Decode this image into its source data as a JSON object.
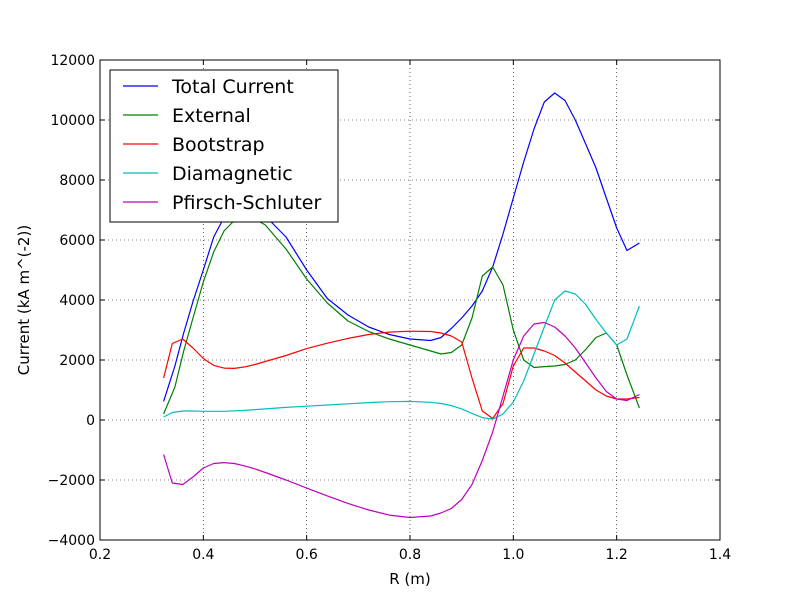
{
  "chart_data": {
    "type": "line",
    "xlabel": "R (m)",
    "ylabel": "Current (kA m^(-2))",
    "xlim": [
      0.2,
      1.4
    ],
    "ylim": [
      -4000,
      12000
    ],
    "xticks": [
      "0.2",
      "0.4",
      "0.6",
      "0.8",
      "1.0",
      "1.2",
      "1.4"
    ],
    "yticks": [
      "−4000",
      "−2000",
      "0",
      "2000",
      "4000",
      "6000",
      "8000",
      "10000",
      "12000"
    ],
    "xtick_values": [
      0.2,
      0.4,
      0.6,
      0.8,
      1.0,
      1.2,
      1.4
    ],
    "ytick_values": [
      -4000,
      -2000,
      0,
      2000,
      4000,
      6000,
      8000,
      10000,
      12000
    ],
    "grid": true,
    "legend_position": "top-left",
    "series": [
      {
        "name": "Total Current",
        "color": "#0000ff",
        "x": [
          0.323,
          0.345,
          0.362,
          0.38,
          0.4,
          0.42,
          0.44,
          0.46,
          0.48,
          0.5,
          0.52,
          0.56,
          0.6,
          0.64,
          0.68,
          0.72,
          0.76,
          0.8,
          0.84,
          0.86,
          0.88,
          0.9,
          0.92,
          0.94,
          0.96,
          0.98,
          1.0,
          1.02,
          1.04,
          1.06,
          1.08,
          1.1,
          1.12,
          1.14,
          1.16,
          1.18,
          1.2,
          1.22,
          1.244
        ],
        "y": [
          620,
          1800,
          2900,
          3950,
          5000,
          6100,
          6750,
          7050,
          7050,
          6950,
          6800,
          6100,
          5000,
          4050,
          3500,
          3100,
          2850,
          2700,
          2650,
          2750,
          3050,
          3400,
          3800,
          4300,
          5100,
          6200,
          7400,
          8600,
          9700,
          10600,
          10900,
          10650,
          10000,
          9200,
          8400,
          7400,
          6400,
          5650,
          5900
        ]
      },
      {
        "name": "External",
        "color": "#008000",
        "x": [
          0.323,
          0.345,
          0.362,
          0.38,
          0.4,
          0.42,
          0.44,
          0.46,
          0.48,
          0.5,
          0.52,
          0.56,
          0.6,
          0.64,
          0.68,
          0.72,
          0.76,
          0.8,
          0.84,
          0.86,
          0.88,
          0.9,
          0.92,
          0.94,
          0.96,
          0.98,
          1.0,
          1.02,
          1.04,
          1.06,
          1.08,
          1.1,
          1.12,
          1.14,
          1.16,
          1.18,
          1.2,
          1.22,
          1.244
        ],
        "y": [
          200,
          1100,
          2300,
          3400,
          4600,
          5600,
          6300,
          6650,
          6750,
          6700,
          6500,
          5700,
          4700,
          3900,
          3300,
          2950,
          2700,
          2500,
          2300,
          2200,
          2250,
          2500,
          3400,
          4800,
          5100,
          4500,
          3000,
          2000,
          1750,
          1780,
          1800,
          1850,
          2000,
          2350,
          2750,
          2900,
          2500,
          1500,
          400
        ]
      },
      {
        "name": "Bootstrap",
        "color": "#ff0000",
        "x": [
          0.323,
          0.34,
          0.36,
          0.38,
          0.4,
          0.42,
          0.44,
          0.46,
          0.48,
          0.5,
          0.52,
          0.56,
          0.6,
          0.64,
          0.68,
          0.72,
          0.76,
          0.8,
          0.84,
          0.86,
          0.88,
          0.9,
          0.92,
          0.94,
          0.96,
          0.98,
          1.0,
          1.02,
          1.04,
          1.06,
          1.08,
          1.1,
          1.12,
          1.14,
          1.16,
          1.18,
          1.2,
          1.22,
          1.244
        ],
        "y": [
          1400,
          2550,
          2700,
          2400,
          2050,
          1820,
          1730,
          1720,
          1770,
          1850,
          1950,
          2150,
          2380,
          2560,
          2720,
          2850,
          2930,
          2960,
          2950,
          2900,
          2800,
          2600,
          1400,
          300,
          50,
          550,
          1800,
          2400,
          2400,
          2300,
          2150,
          1900,
          1600,
          1300,
          1000,
          800,
          700,
          700,
          750
        ]
      },
      {
        "name": "Diamagnetic",
        "color": "#00bfbf",
        "x": [
          0.323,
          0.34,
          0.36,
          0.38,
          0.4,
          0.44,
          0.48,
          0.52,
          0.56,
          0.6,
          0.64,
          0.68,
          0.72,
          0.76,
          0.8,
          0.84,
          0.86,
          0.88,
          0.9,
          0.92,
          0.94,
          0.96,
          0.98,
          1.0,
          1.02,
          1.04,
          1.06,
          1.08,
          1.1,
          1.12,
          1.14,
          1.16,
          1.18,
          1.2,
          1.22,
          1.244
        ],
        "y": [
          100,
          250,
          300,
          300,
          290,
          290,
          320,
          370,
          420,
          460,
          500,
          540,
          580,
          610,
          620,
          590,
          550,
          480,
          370,
          220,
          80,
          30,
          200,
          600,
          1300,
          2200,
          3100,
          4000,
          4300,
          4200,
          3850,
          3350,
          2900,
          2500,
          2700,
          3800
        ]
      },
      {
        "name": "Pfirsch-Schluter",
        "color": "#bf00bf",
        "x": [
          0.323,
          0.34,
          0.36,
          0.38,
          0.4,
          0.42,
          0.44,
          0.46,
          0.48,
          0.5,
          0.52,
          0.56,
          0.6,
          0.64,
          0.68,
          0.72,
          0.76,
          0.8,
          0.84,
          0.86,
          0.88,
          0.9,
          0.92,
          0.94,
          0.96,
          0.98,
          1.0,
          1.02,
          1.04,
          1.06,
          1.08,
          1.1,
          1.12,
          1.14,
          1.16,
          1.18,
          1.2,
          1.22,
          1.244
        ],
        "y": [
          -1150,
          -2100,
          -2150,
          -1900,
          -1600,
          -1450,
          -1420,
          -1450,
          -1530,
          -1630,
          -1750,
          -2000,
          -2270,
          -2530,
          -2780,
          -3000,
          -3170,
          -3250,
          -3200,
          -3100,
          -2950,
          -2650,
          -2150,
          -1350,
          -400,
          800,
          2000,
          2800,
          3200,
          3250,
          3100,
          2800,
          2400,
          1900,
          1400,
          950,
          700,
          650,
          850
        ]
      }
    ]
  }
}
